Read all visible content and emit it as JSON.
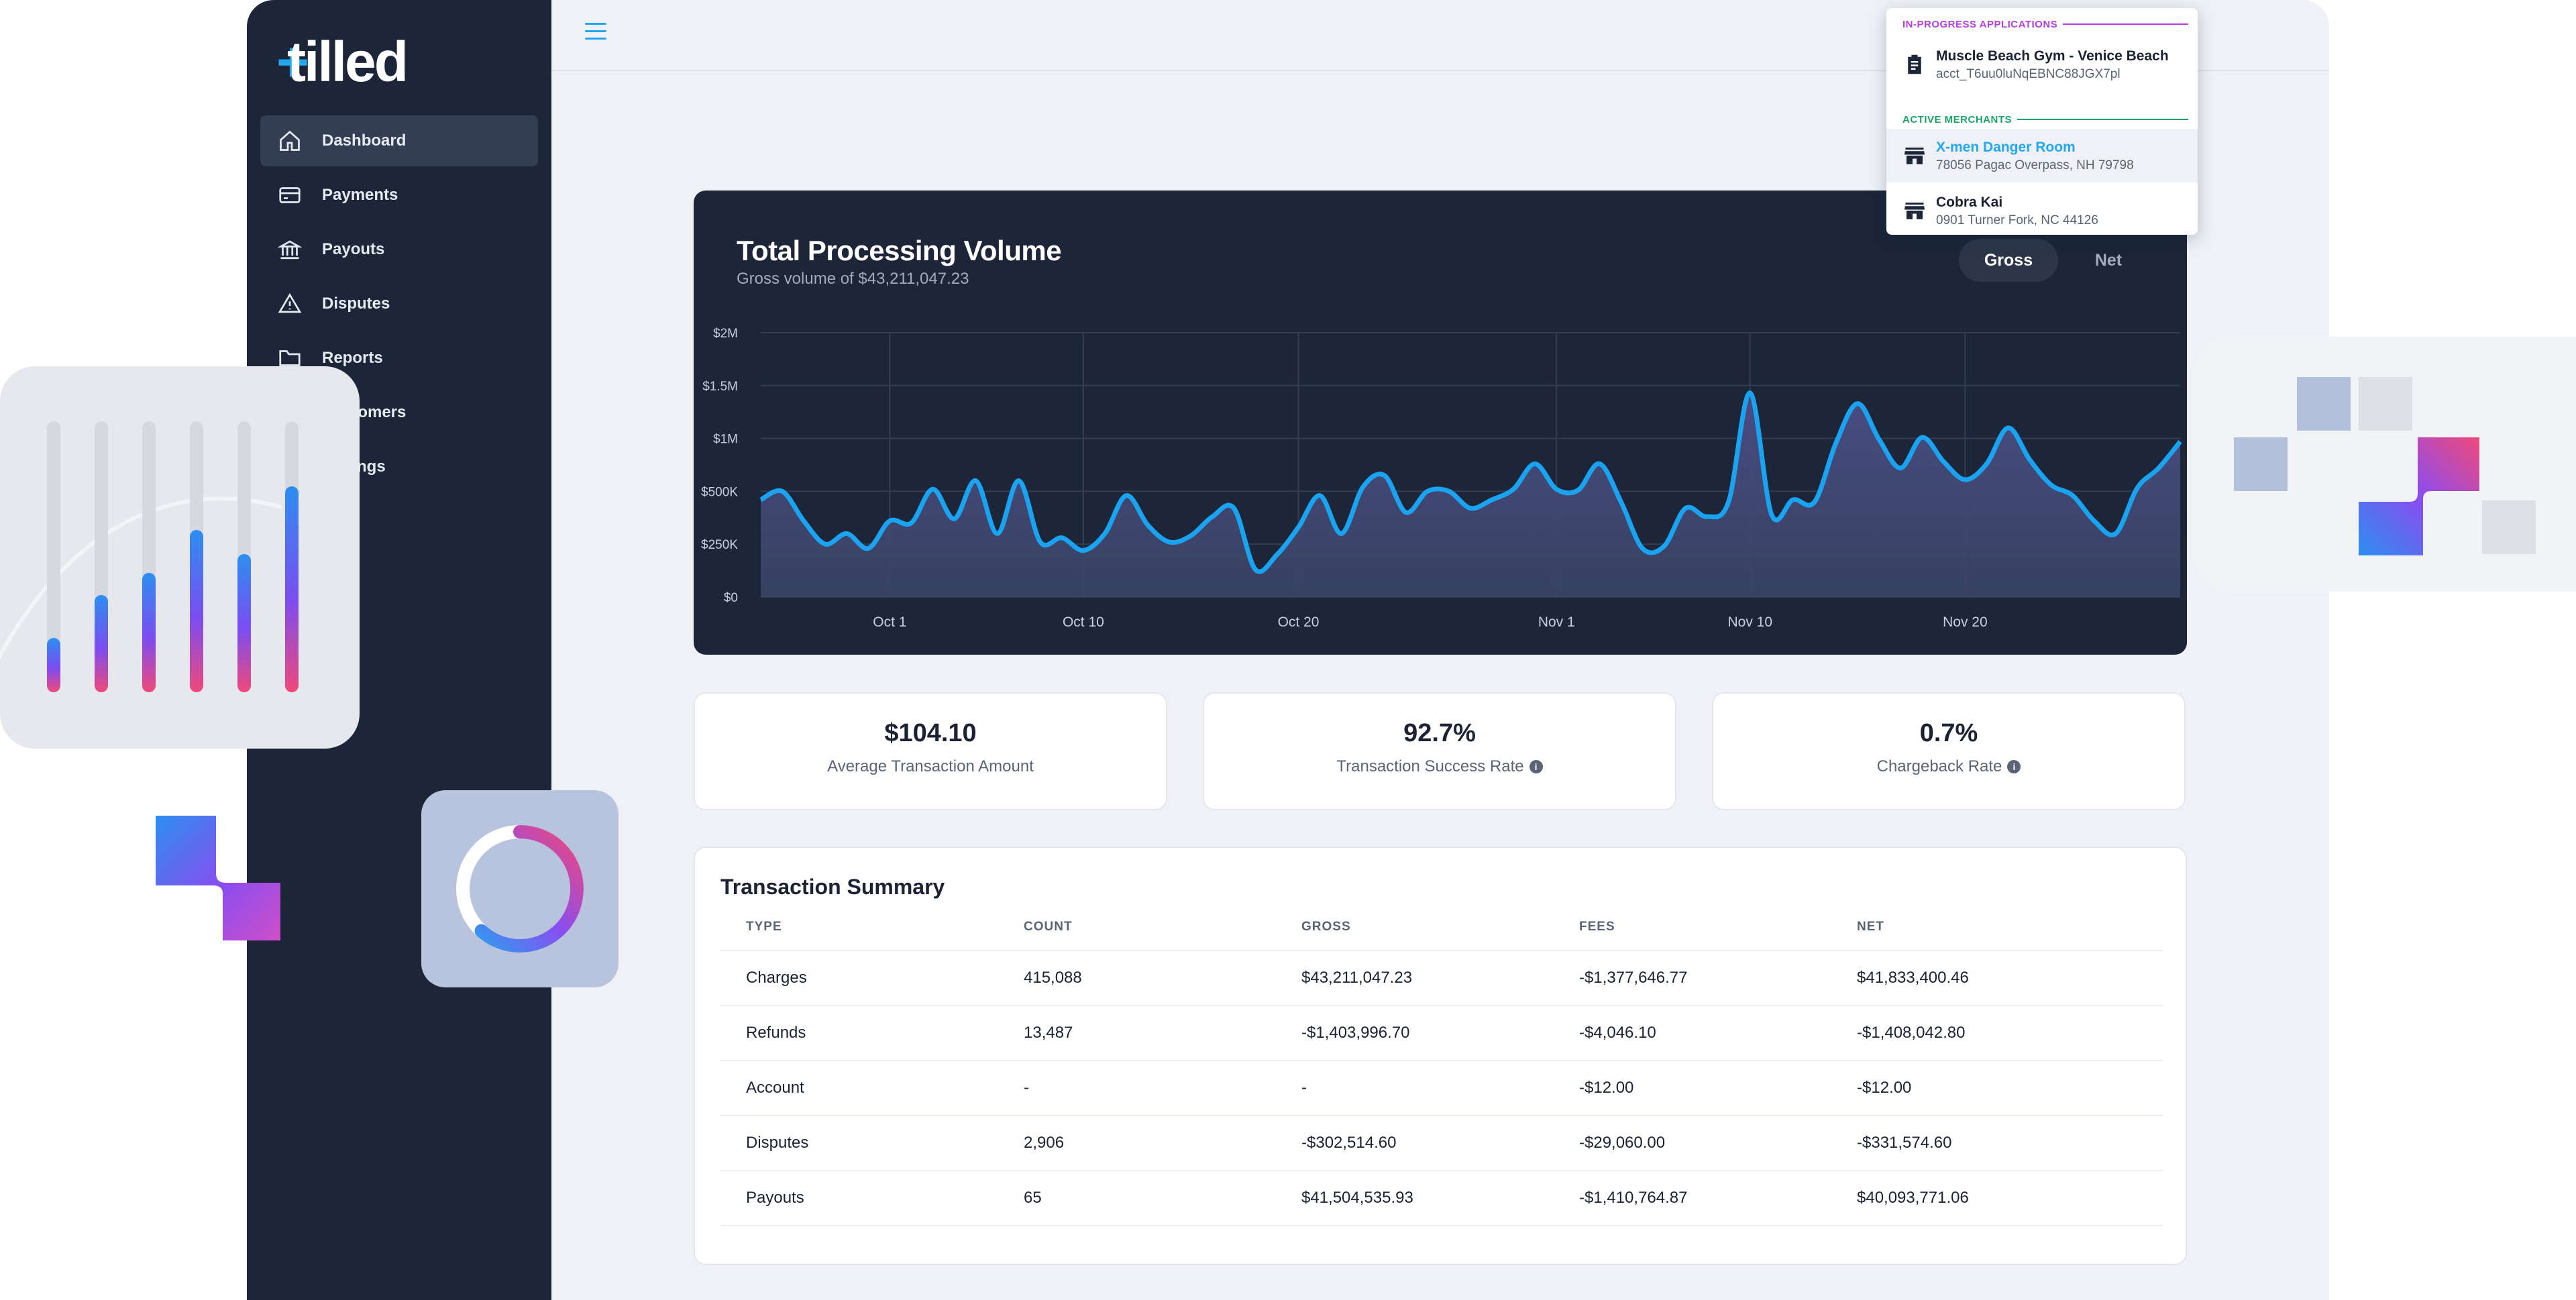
{
  "brand": {
    "logo_text": "tilled"
  },
  "sidebar": {
    "items": [
      {
        "label": "Dashboard",
        "icon": "home-icon",
        "active": true
      },
      {
        "label": "Payments",
        "icon": "credit-card-icon"
      },
      {
        "label": "Payouts",
        "icon": "bank-icon"
      },
      {
        "label": "Disputes",
        "icon": "warning-icon"
      },
      {
        "label": "Reports",
        "icon": "folder-icon"
      },
      {
        "label": "Customers",
        "icon": "users-icon"
      },
      {
        "label": "Settings",
        "icon": "gear-icon"
      }
    ]
  },
  "topbar": {
    "icons": [
      "menu-icon",
      "help-icon",
      "account-icon"
    ],
    "accent": "#22a8f0"
  },
  "dropdown": {
    "in_progress_label": "IN-PROGRESS APPLICATIONS",
    "in_progress_color": "#b43ee0",
    "applications": [
      {
        "name": "Muscle Beach Gym - Venice Beach",
        "detail": "acct_T6uu0luNqEBNC88JGX7pl",
        "icon": "clipboard-icon"
      }
    ],
    "active_label": "ACTIVE MERCHANTS",
    "active_color": "#1aa36a",
    "merchants": [
      {
        "name": "X-men Danger Room",
        "detail": "78056 Pagac Overpass, NH 79798",
        "icon": "store-icon",
        "highlighted": true
      },
      {
        "name": "Cobra Kai",
        "detail": "0901 Turner Fork, NC 44126",
        "icon": "store-icon"
      }
    ]
  },
  "volume": {
    "title": "Total Processing Volume",
    "subtitle": "Gross volume of $43,211,047.23",
    "toggle_gross": "Gross",
    "toggle_net": "Net",
    "line_color": "#1aa3f0"
  },
  "chart_data": {
    "type": "area",
    "title": "Total Processing Volume",
    "subtitle": "Gross volume of $43,211,047.23",
    "xlabel": "",
    "ylabel": "",
    "ylim": [
      0,
      2000000
    ],
    "y_ticks": [
      {
        "value": 0,
        "label": "$0"
      },
      {
        "value": 250000,
        "label": "$250K"
      },
      {
        "value": 500000,
        "label": "$500K"
      },
      {
        "value": 1000000,
        "label": "$1M"
      },
      {
        "value": 1500000,
        "label": "$1.5M"
      },
      {
        "value": 2000000,
        "label": "$2M"
      }
    ],
    "x_ticks": [
      {
        "index": 6,
        "label": "Oct 1"
      },
      {
        "index": 15,
        "label": "Oct 10"
      },
      {
        "index": 25,
        "label": "Oct 20"
      },
      {
        "index": 37,
        "label": "Nov 1"
      },
      {
        "index": 46,
        "label": "Nov 10"
      },
      {
        "index": 56,
        "label": "Nov 20"
      }
    ],
    "grid": true,
    "legend": "none",
    "series": [
      {
        "values": [
          460000,
          500000,
          360000,
          250000,
          300000,
          230000,
          360000,
          350000,
          520000,
          370000,
          600000,
          300000,
          600000,
          260000,
          280000,
          220000,
          300000,
          480000,
          340000,
          260000,
          290000,
          380000,
          420000,
          130000,
          200000,
          330000,
          480000,
          300000,
          540000,
          650000,
          400000,
          500000,
          500000,
          420000,
          460000,
          520000,
          760000,
          520000,
          510000,
          760000,
          450000,
          230000,
          240000,
          420000,
          380000,
          450000,
          1430000,
          390000,
          460000,
          450000,
          960000,
          1330000,
          990000,
          720000,
          1010000,
          780000,
          610000,
          760000,
          1100000,
          800000,
          560000,
          480000,
          360000,
          300000,
          530000,
          720000,
          970000
        ]
      }
    ]
  },
  "kpis": [
    {
      "value": "$104.10",
      "label": "Average Transaction Amount",
      "info": false
    },
    {
      "value": "92.7%",
      "label": "Transaction Success Rate",
      "info": true
    },
    {
      "value": "0.7%",
      "label": "Chargeback Rate",
      "info": true
    }
  ],
  "summary": {
    "title": "Transaction Summary",
    "columns": [
      "TYPE",
      "COUNT",
      "GROSS",
      "FEES",
      "NET"
    ],
    "rows": [
      [
        "Charges",
        "415,088",
        "$43,211,047.23",
        "-$1,377,646.77",
        "$41,833,400.46"
      ],
      [
        "Refunds",
        "13,487",
        "-$1,403,996.70",
        "-$4,046.10",
        "-$1,408,042.80"
      ],
      [
        "Account",
        "-",
        "-",
        "-$12.00",
        "-$12.00"
      ],
      [
        "Disputes",
        "2,906",
        "-$302,514.60",
        "-$29,060.00",
        "-$331,574.60"
      ],
      [
        "Payouts",
        "65",
        "$41,504,535.93",
        "-$1,410,764.87",
        "$40,093,771.06"
      ]
    ]
  },
  "decor": {
    "bar_levels": [
      0.2,
      0.36,
      0.44,
      0.6,
      0.51,
      0.76
    ]
  }
}
